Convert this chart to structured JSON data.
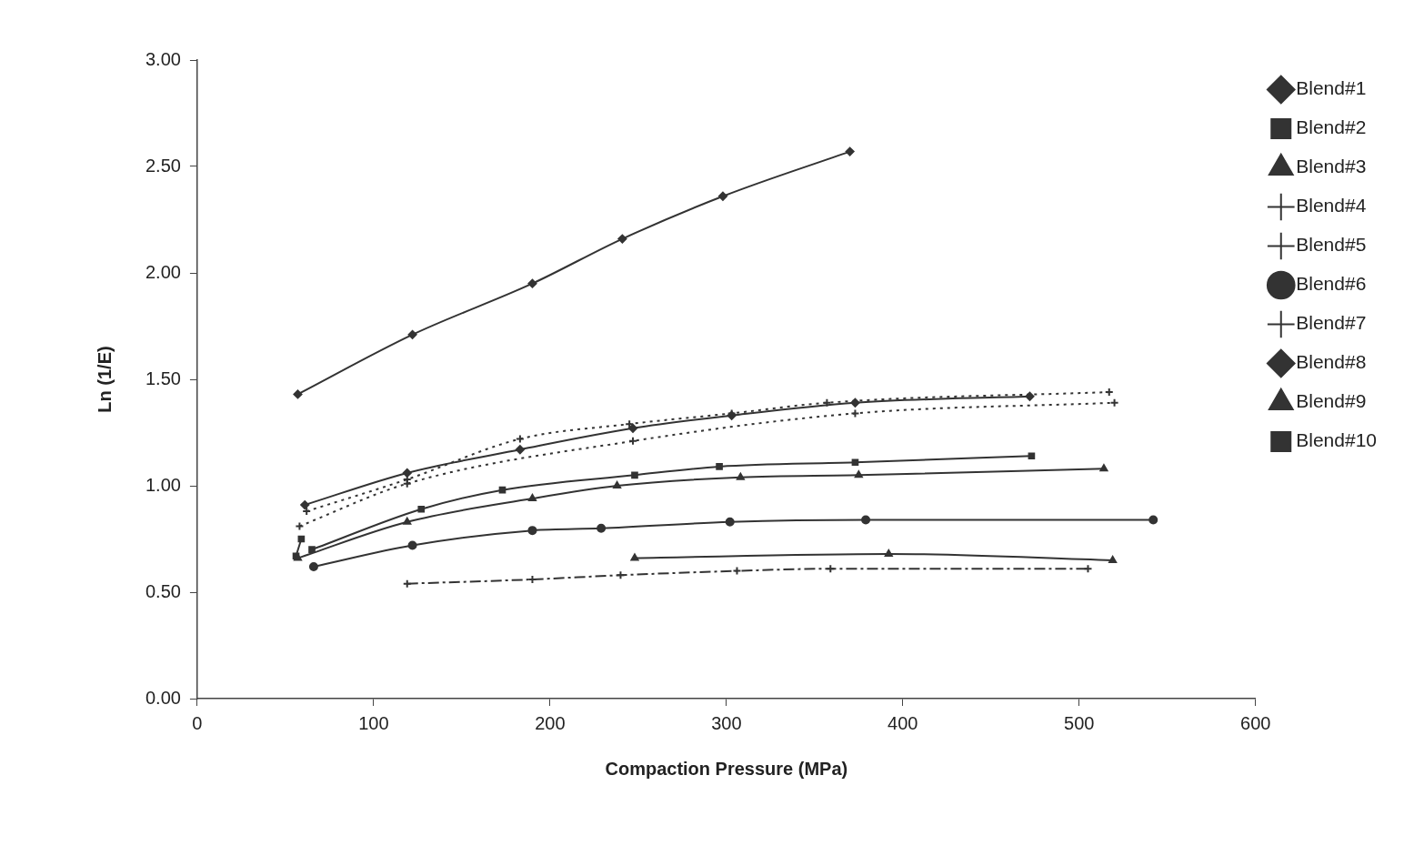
{
  "chart_data": {
    "type": "line",
    "xlabel": "Compaction Pressure (MPa)",
    "ylabel": "Ln (1/E)",
    "xlim": [
      0,
      600
    ],
    "xticks": [
      0,
      100,
      200,
      300,
      400,
      500,
      600
    ],
    "ylim": [
      0,
      3
    ],
    "yticks": [
      {
        "value": 0,
        "label": "0.00"
      },
      {
        "value": 0.5,
        "label": "0.50"
      },
      {
        "value": 1,
        "label": "1.00"
      },
      {
        "value": 1.5,
        "label": "1.50"
      },
      {
        "value": 2,
        "label": "2.00"
      },
      {
        "value": 2.5,
        "label": "2.50"
      },
      {
        "value": 3,
        "label": "3.00"
      }
    ],
    "grid": false,
    "legend": "top right",
    "series": [
      {
        "name": "Blend#1",
        "color": "#333333",
        "marker": "diamond",
        "line_style": "solid",
        "x": [
          57,
          122,
          190,
          241,
          298,
          370
        ],
        "values": [
          1.43,
          1.71,
          1.95,
          2.16,
          2.36,
          2.57
        ]
      },
      {
        "name": "Blend#2",
        "color": "#333333",
        "marker": "square",
        "line_style": "solid",
        "x": [
          65,
          127,
          173,
          248,
          296,
          373,
          473
        ],
        "values": [
          0.7,
          0.89,
          0.98,
          1.05,
          1.09,
          1.11,
          1.14
        ]
      },
      {
        "name": "Blend#3",
        "color": "#333333",
        "marker": "triangle",
        "line_style": "solid",
        "x": [
          248,
          392,
          519
        ],
        "values": [
          0.66,
          0.68,
          0.65
        ]
      },
      {
        "name": "Blend#4",
        "color": "#333333",
        "marker": "cross",
        "line_style": "dotted",
        "x": [
          58,
          119,
          247,
          373,
          520
        ],
        "values": [
          0.81,
          1.01,
          1.21,
          1.34,
          1.39
        ]
      },
      {
        "name": "Blend#5",
        "color": "#333333",
        "marker": "cross",
        "line_style": "dashed",
        "x": [
          119,
          190,
          240,
          306,
          359,
          505
        ],
        "values": [
          0.54,
          0.56,
          0.58,
          0.6,
          0.61,
          0.61
        ]
      },
      {
        "name": "Blend#6",
        "color": "#333333",
        "marker": "circle",
        "line_style": "solid",
        "x": [
          66,
          122,
          190,
          229,
          302,
          379,
          542
        ],
        "values": [
          0.62,
          0.72,
          0.79,
          0.8,
          0.83,
          0.84,
          0.84
        ]
      },
      {
        "name": "Blend#7",
        "color": "#333333",
        "marker": "cross",
        "line_style": "dotted",
        "x": [
          62,
          119,
          183,
          245,
          303,
          357,
          517
        ],
        "values": [
          0.88,
          1.03,
          1.22,
          1.29,
          1.34,
          1.39,
          1.44
        ]
      },
      {
        "name": "Blend#8",
        "color": "#333333",
        "marker": "diamond",
        "line_style": "solid",
        "x": [
          61,
          119,
          183,
          247,
          303,
          373,
          472
        ],
        "values": [
          0.91,
          1.06,
          1.17,
          1.27,
          1.33,
          1.39,
          1.42
        ]
      },
      {
        "name": "Blend#9",
        "color": "#333333",
        "marker": "triangle",
        "line_style": "solid",
        "x": [
          57,
          119,
          190,
          238,
          308,
          375,
          514
        ],
        "values": [
          0.66,
          0.83,
          0.94,
          1.0,
          1.04,
          1.05,
          1.08
        ]
      },
      {
        "name": "Blend#10",
        "color": "#333333",
        "marker": "square",
        "line_style": "solid",
        "x": [
          56,
          59
        ],
        "values": [
          0.67,
          0.75
        ]
      }
    ]
  }
}
